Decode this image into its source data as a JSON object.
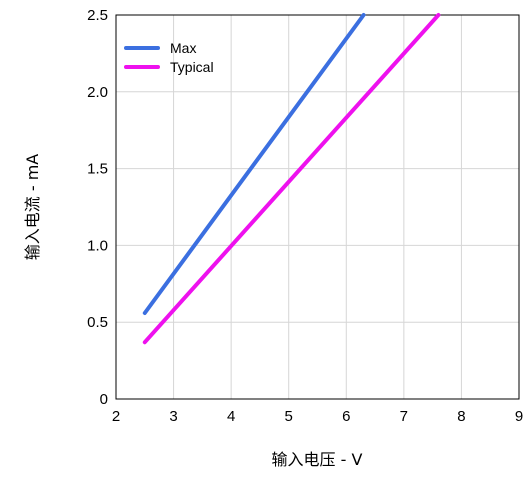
{
  "chart_data": {
    "type": "line",
    "title": "",
    "xlabel": "输入电压 - V",
    "ylabel": "输入电流 - mA",
    "xlim": [
      2,
      9
    ],
    "ylim": [
      0,
      2.5
    ],
    "xticks": [
      "2",
      "3",
      "4",
      "5",
      "6",
      "7",
      "8",
      "9"
    ],
    "yticks": [
      "0",
      "0.5",
      "1.0",
      "1.5",
      "2.0",
      "2.5"
    ],
    "grid": true,
    "legend_position": "top-left",
    "series": [
      {
        "name": "Max",
        "color": "#3b6fe0",
        "x": [
          2.5,
          6.3
        ],
        "y": [
          0.56,
          2.5
        ]
      },
      {
        "name": "Typical",
        "color": "#ee11ee",
        "x": [
          2.5,
          7.6
        ],
        "y": [
          0.37,
          2.5
        ]
      }
    ]
  }
}
